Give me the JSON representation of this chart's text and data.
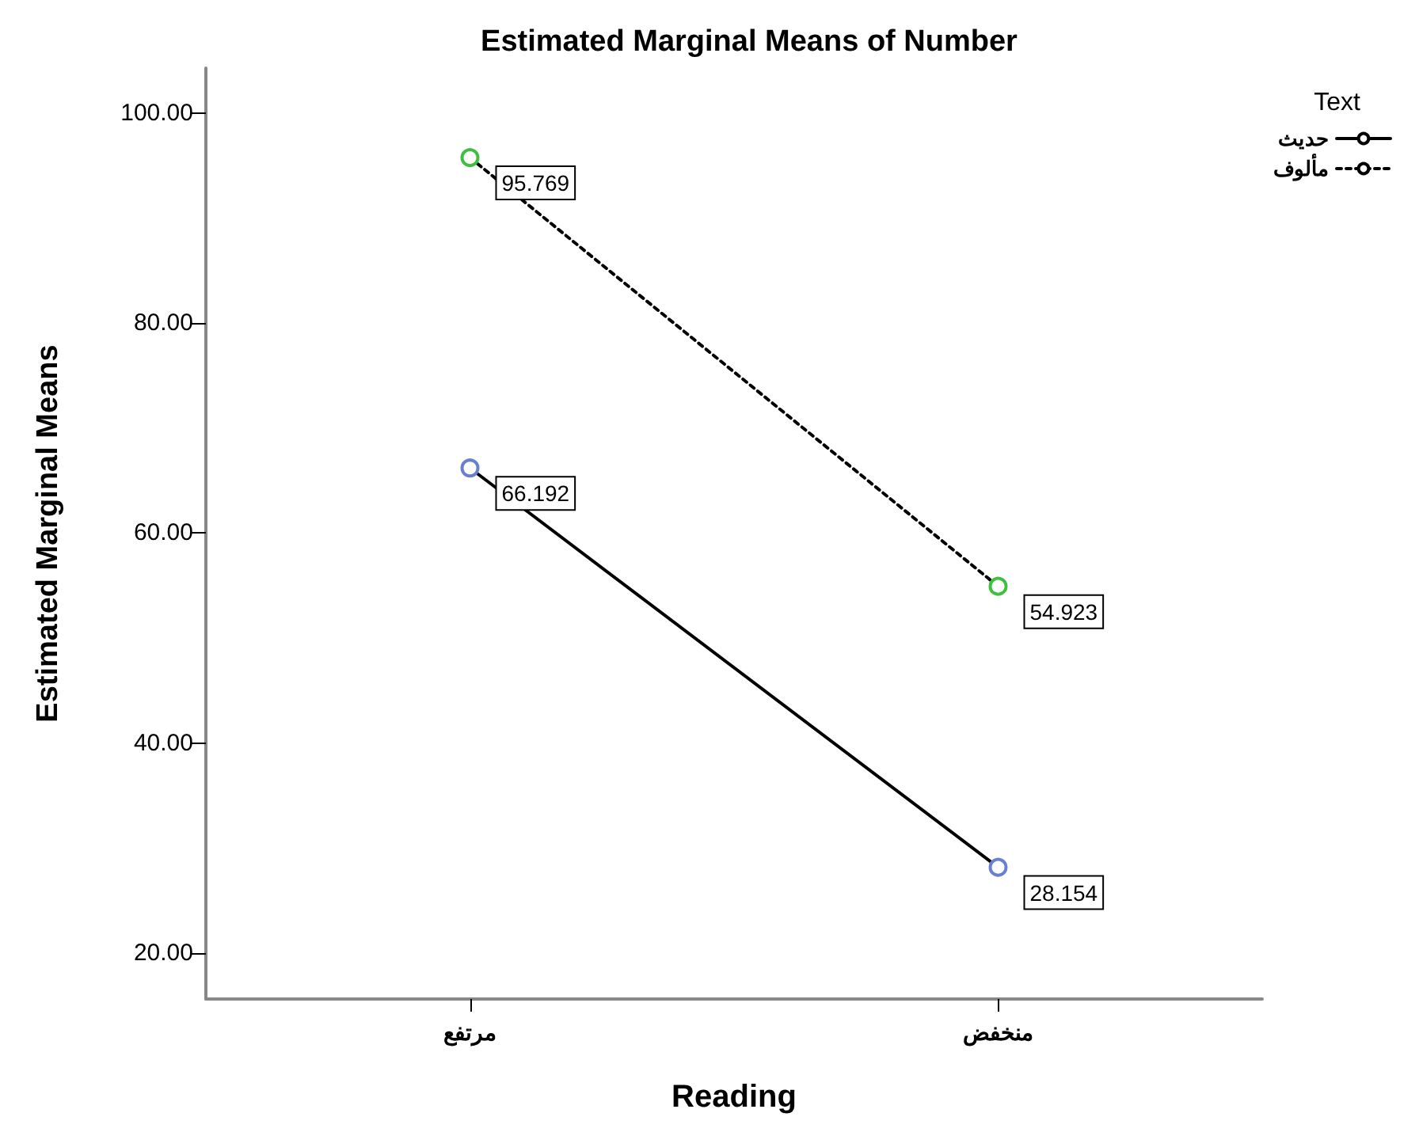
{
  "chart_data": {
    "type": "line",
    "title": "Estimated Marginal Means of Number",
    "xlabel": "Reading",
    "ylabel": "Estimated Marginal Means",
    "legend_title": "Text",
    "categories": [
      "مرتفع",
      "منخفض"
    ],
    "series": [
      {
        "name": "حديث",
        "color": "#000000",
        "colors": [
          "#6a7fd0",
          "#6a7fd0"
        ],
        "line_style": "solid",
        "values": [
          66.192,
          28.154
        ]
      },
      {
        "name": "مألوف",
        "color": "#000000",
        "colors": [
          "#3fbf3f",
          "#3fbf3f"
        ],
        "line_style": "dotted",
        "values": [
          95.769,
          54.923
        ]
      }
    ],
    "ylim": [
      15.6,
      104.3
    ],
    "yticks": [
      {
        "value": 20,
        "label": "20.00"
      },
      {
        "value": 40,
        "label": "40.00"
      },
      {
        "value": 60,
        "label": "60.00"
      },
      {
        "value": 80,
        "label": "80.00"
      },
      {
        "value": 100,
        "label": "100.00"
      }
    ],
    "marker": "circle",
    "data_labels": true,
    "legend": "top right",
    "grid": false
  }
}
